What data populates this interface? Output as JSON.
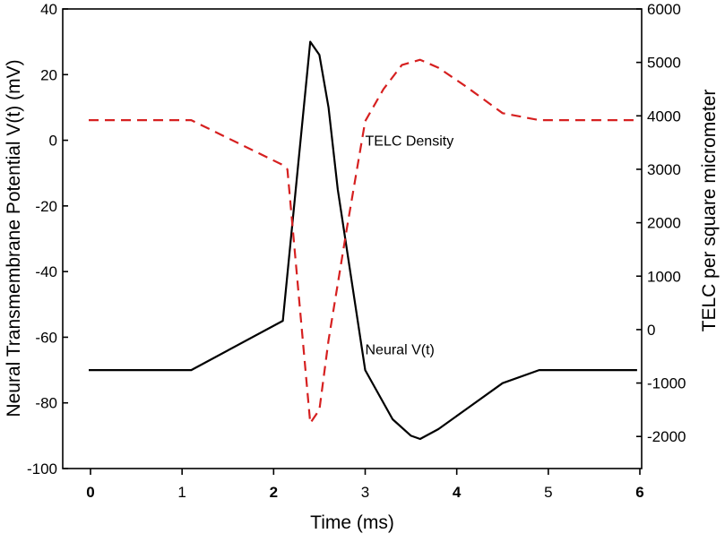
{
  "chart_data": {
    "type": "line",
    "x_axis": {
      "label": "Time (ms)",
      "range": [
        0,
        6
      ],
      "ticks": [
        {
          "value": 0,
          "label": "0",
          "bold": true
        },
        {
          "value": 1,
          "label": "1",
          "bold": false
        },
        {
          "value": 2,
          "label": "2",
          "bold": true
        },
        {
          "value": 3,
          "label": "3",
          "bold": false
        },
        {
          "value": 4,
          "label": "4",
          "bold": true
        },
        {
          "value": 5,
          "label": "5",
          "bold": false
        },
        {
          "value": 6,
          "label": "6",
          "bold": true
        }
      ]
    },
    "y_left": {
      "label": "Neural Transmembrane Potential V(t) (mV)",
      "range": [
        -100,
        40
      ],
      "ticks": [
        "-100",
        "-80",
        "-60",
        "-40",
        "-20",
        "0",
        "20",
        "40"
      ]
    },
    "y_right": {
      "label": "TELC per square micrometer",
      "range": [
        -2600,
        6000
      ],
      "ticks": [
        "-2000",
        "-1000",
        "0",
        "1000",
        "2000",
        "3000",
        "4000",
        "5000",
        "6000"
      ]
    },
    "series": [
      {
        "name": "Neural V(t)",
        "axis": "left",
        "color": "#000000",
        "style": "solid",
        "x": [
          -0.02,
          1.1,
          2.1,
          2.4,
          2.5,
          2.6,
          2.7,
          3.0,
          3.3,
          3.5,
          3.6,
          3.8,
          4.1,
          4.5,
          4.9,
          5.97
        ],
        "y": [
          -70,
          -70,
          -55,
          30,
          26,
          10,
          -15,
          -70,
          -85,
          -90,
          -91,
          -88,
          -82,
          -74,
          -70,
          -70
        ]
      },
      {
        "name": "TELC Density",
        "axis": "right",
        "color": "#d62020",
        "style": "dashed",
        "x": [
          -0.02,
          1.1,
          2.1,
          2.15,
          2.4,
          2.5,
          2.6,
          2.8,
          3.0,
          3.2,
          3.4,
          3.6,
          3.8,
          4.1,
          4.5,
          4.9,
          5.97
        ],
        "y": [
          3920,
          3920,
          3080,
          3000,
          -1750,
          -1500,
          -200,
          1900,
          3900,
          4500,
          4950,
          5050,
          4900,
          4550,
          4050,
          3920,
          3920
        ]
      }
    ],
    "annotations": [
      {
        "text": "TELC Density",
        "x": 3.0,
        "y_left": 0.0
      },
      {
        "text": "Neural V(t)",
        "x": 3.0,
        "y_left": -63.5
      }
    ],
    "grid": false,
    "legend": "none"
  }
}
